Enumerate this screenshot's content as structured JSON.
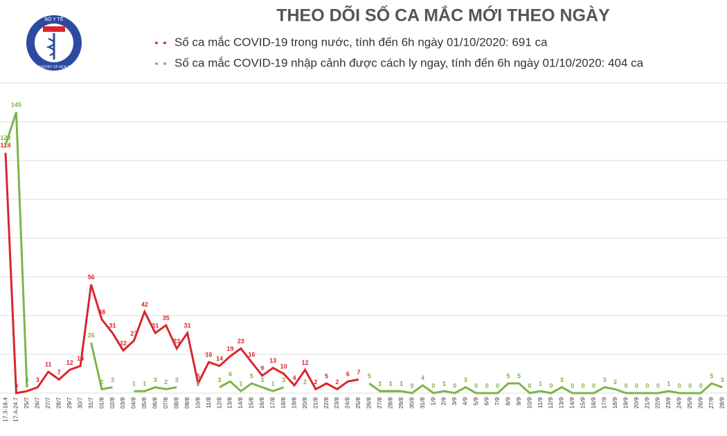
{
  "header": {
    "logo_top": "BỘ Y TẾ",
    "logo_bottom": "MINISTRY OF HEALTH"
  },
  "chart_data": {
    "type": "line",
    "title": "THEO DÕI SỐ CA MẮC MỚI THEO NGÀY",
    "categories": [
      "17.3-16.4",
      "17.4-24.7",
      "25/7",
      "26/7",
      "27/7",
      "28/7",
      "29/7",
      "30/7",
      "31/7",
      "01/8",
      "02/8",
      "03/8",
      "04/8",
      "05/8",
      "06/8",
      "07/8",
      "08/8",
      "09/8",
      "10/8",
      "11/8",
      "12/8",
      "13/8",
      "14/8",
      "15/8",
      "16/8",
      "17/8",
      "18/8",
      "19/8",
      "20/8",
      "21/8",
      "22/8",
      "23/8",
      "24/8",
      "25/8",
      "26/8",
      "27/8",
      "28/8",
      "29/8",
      "30/8",
      "31/8",
      "1/9",
      "2/9",
      "3/9",
      "4/9",
      "5/9",
      "6/9",
      "7/9",
      "8/9",
      "9/9",
      "10/9",
      "11/9",
      "12/9",
      "13/9",
      "14/9",
      "15/9",
      "16/9",
      "17/9",
      "18/9",
      "19/9",
      "20/9",
      "21/9",
      "22/9",
      "23/9",
      "24/9",
      "25/9",
      "26/9",
      "27/9",
      "28/9"
    ],
    "series": [
      {
        "name": "Số ca mắc COVID-19 trong nước, tính đến 6h ngày 01/10/2020: 691 ca",
        "color": "#d9262b",
        "values": [
          124,
          0,
          1,
          3,
          11,
          7,
          12,
          14,
          56,
          38,
          31,
          22,
          27,
          42,
          31,
          35,
          23,
          31,
          5,
          16,
          14,
          19,
          23,
          16,
          9,
          13,
          10,
          4,
          12,
          2,
          5,
          2,
          6,
          7,
          null,
          1,
          1,
          1,
          null,
          null,
          null,
          1,
          null,
          null,
          null,
          null,
          null,
          null,
          null,
          null,
          null,
          null,
          null,
          null,
          null,
          null,
          null,
          null,
          null,
          null,
          null,
          null,
          null,
          null,
          null,
          null,
          null,
          null
        ]
      },
      {
        "name": "Số ca mắc COVID-19 nhập cảnh được cách ly ngay, tính đến 6h ngày 01/10/2020: 404 ca",
        "color": "#7ab648",
        "values": [
          128,
          145,
          3,
          null,
          null,
          null,
          null,
          null,
          26,
          2,
          3,
          null,
          1,
          1,
          3,
          2,
          3,
          null,
          1,
          null,
          3,
          6,
          1,
          5,
          3,
          1,
          3,
          null,
          2,
          null,
          null,
          null,
          null,
          null,
          5,
          1,
          1,
          1,
          0,
          4,
          0,
          1,
          0,
          3,
          0,
          0,
          0,
          5,
          5,
          0,
          1,
          0,
          3,
          0,
          0,
          0,
          3,
          2,
          0,
          0,
          0,
          0,
          1,
          0,
          0,
          0,
          5,
          3
        ]
      }
    ],
    "ylim": [
      0,
      160
    ],
    "yticks": [
      0,
      20,
      40,
      60,
      80,
      100,
      120,
      140,
      160
    ],
    "grid": true
  }
}
